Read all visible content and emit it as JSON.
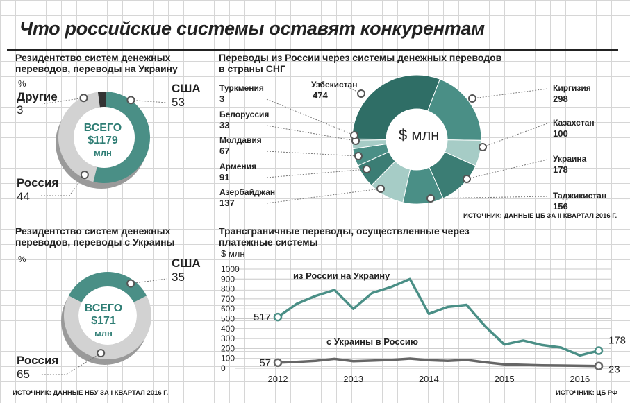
{
  "page": {
    "title": "Что российские системы оставят конкурентам",
    "source_left": "ИСТОЧНИК: ДАННЫЕ НБУ ЗА I КВАРТАЛ 2016 Г.",
    "source_right": "ИСТОЧНИК: ЦБ РФ",
    "source_cis": "ИСТОЧНИК: ДАННЫЕ ЦБ ЗА II КВАРТАЛ 2016 Г."
  },
  "colors": {
    "teal": "#4a8f86",
    "teal_dark": "#2f6e66",
    "teal_light": "#a6ccc6",
    "grey": "#d2d2d2",
    "grey_shadow": "#9a9a9a",
    "dark": "#333333"
  },
  "chart_data": [
    {
      "type": "pie",
      "title": "Резидентство систем денежных переводов, переводы на Украину",
      "unit": "%",
      "center_label": [
        "ВСЕГО",
        "$1179",
        "млн"
      ],
      "slices": [
        {
          "name": "США",
          "value": 53
        },
        {
          "name": "Россия",
          "value": 44
        },
        {
          "name": "Другие",
          "value": 3
        }
      ]
    },
    {
      "type": "pie",
      "title": "Переводы из России через системы денежных переводов в страны СНГ",
      "center_label": "$ млн",
      "slices": [
        {
          "name": "Узбекистан",
          "value": 474
        },
        {
          "name": "Киргизия",
          "value": 298
        },
        {
          "name": "Казахстан",
          "value": 100
        },
        {
          "name": "Украина",
          "value": 178
        },
        {
          "name": "Таджикистан",
          "value": 156
        },
        {
          "name": "Азербайджан",
          "value": 137
        },
        {
          "name": "Армения",
          "value": 91
        },
        {
          "name": "Молдавия",
          "value": 67
        },
        {
          "name": "Белоруссия",
          "value": 33
        },
        {
          "name": "Туркмения",
          "value": 3
        }
      ]
    },
    {
      "type": "pie",
      "title": "Резидентство систем денежных переводов, переводы с Украины",
      "unit": "%",
      "center_label": [
        "ВСЕГО",
        "$171",
        "млн"
      ],
      "slices": [
        {
          "name": "США",
          "value": 35
        },
        {
          "name": "Россия",
          "value": 65
        }
      ]
    },
    {
      "type": "line",
      "title": "Трансграничные переводы, осуществленные через платежные системы",
      "ylabel": "$ млн",
      "ylim": [
        0,
        1000
      ],
      "yticks": [
        0,
        100,
        200,
        300,
        400,
        500,
        600,
        700,
        800,
        900,
        1000
      ],
      "xticks": [
        "2012",
        "2013",
        "2014",
        "2015",
        "2016"
      ],
      "x": [
        "2012Q1",
        "2012Q2",
        "2012Q3",
        "2012Q4",
        "2013Q1",
        "2013Q2",
        "2013Q3",
        "2013Q4",
        "2014Q1",
        "2014Q2",
        "2014Q3",
        "2014Q4",
        "2015Q1",
        "2015Q2",
        "2015Q3",
        "2015Q4",
        "2016Q1",
        "2016Q2"
      ],
      "series": [
        {
          "name": "из России на Украину",
          "first_label": "517",
          "last_label": "178",
          "values": [
            517,
            650,
            730,
            790,
            600,
            760,
            820,
            900,
            550,
            620,
            640,
            420,
            240,
            280,
            235,
            210,
            130,
            178
          ]
        },
        {
          "name": "с Украины в Россию",
          "first_label": "57",
          "last_label": "23",
          "values": [
            57,
            65,
            75,
            95,
            72,
            78,
            85,
            98,
            82,
            75,
            85,
            60,
            40,
            35,
            30,
            28,
            25,
            23
          ]
        }
      ]
    }
  ]
}
